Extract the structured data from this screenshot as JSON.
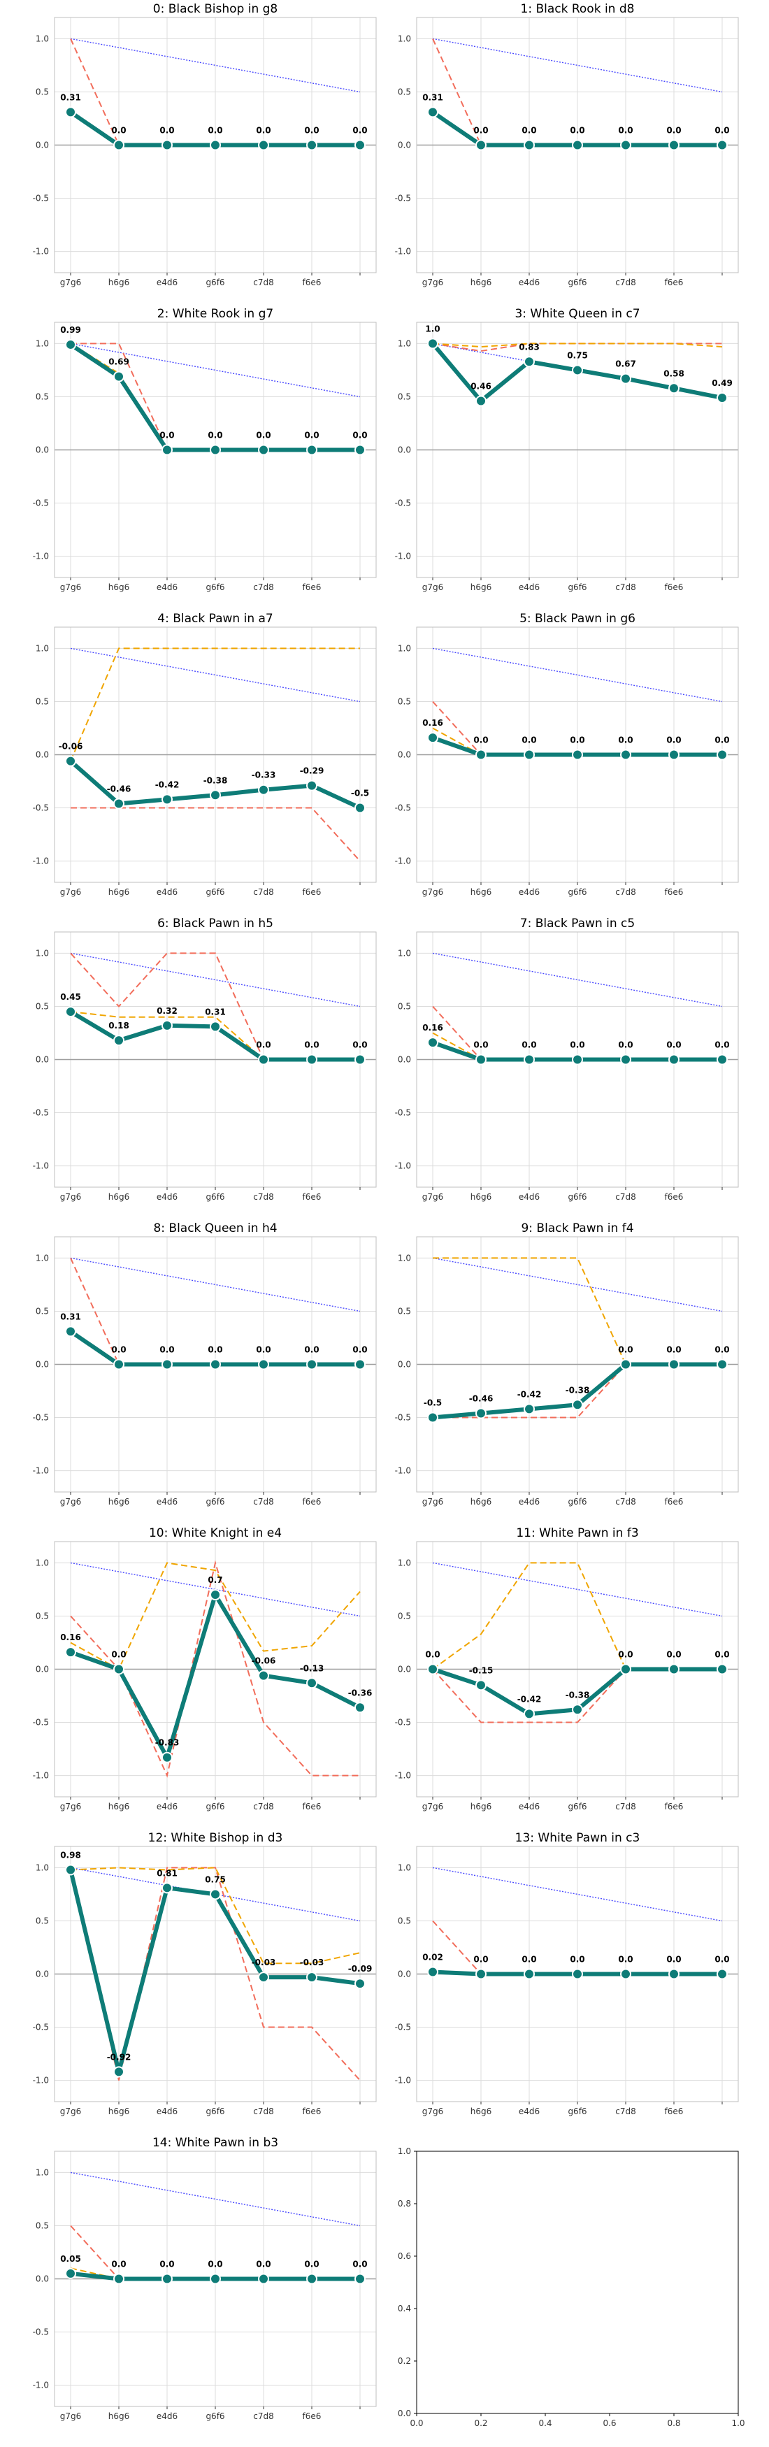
{
  "x_labels": [
    "g7g6",
    "h6g6",
    "e4d6",
    "g6f6",
    "c7d8",
    "f6e6",
    ""
  ],
  "y_ticks": [
    "1.0",
    "0.5",
    "0.0",
    "-0.5",
    "-1.0"
  ],
  "empty_axes_ticks": [
    "0.0",
    "0.2",
    "0.4",
    "0.6",
    "0.8",
    "1.0"
  ],
  "colors": {
    "main": "#0e7c77",
    "orange": "#f0a500",
    "red": "#f26d5b",
    "blue": "#4a4aff",
    "zero": "#9e9e9e"
  },
  "chart_data": [
    {
      "type": "line",
      "title": "0: Black Bishop in g8",
      "ylim": [
        -1.2,
        1.2
      ],
      "series": [
        {
          "name": "main",
          "values": [
            0.31,
            0.0,
            0.0,
            0.0,
            0.0,
            0.0,
            0.0
          ]
        },
        {
          "name": "orange",
          "values": [
            null,
            null,
            null,
            null,
            null,
            null,
            null
          ]
        },
        {
          "name": "red",
          "values": [
            1.0,
            0.0,
            0.0,
            0.0,
            0.0,
            0.0,
            0.0
          ]
        },
        {
          "name": "blue",
          "values": [
            1.0,
            0.917,
            0.833,
            0.75,
            0.667,
            0.583,
            0.5
          ]
        }
      ],
      "labels": [
        "0.31",
        "0.0",
        "0.0",
        "0.0",
        "0.0",
        "0.0",
        "0.0"
      ]
    },
    {
      "type": "line",
      "title": "1: Black Rook in d8",
      "ylim": [
        -1.2,
        1.2
      ],
      "series": [
        {
          "name": "main",
          "values": [
            0.31,
            0.0,
            0.0,
            0.0,
            0.0,
            0.0,
            0.0
          ]
        },
        {
          "name": "orange",
          "values": [
            null,
            null,
            null,
            null,
            null,
            null,
            null
          ]
        },
        {
          "name": "red",
          "values": [
            1.0,
            0.0,
            0.0,
            0.0,
            0.0,
            0.0,
            0.0
          ]
        },
        {
          "name": "blue",
          "values": [
            1.0,
            0.917,
            0.833,
            0.75,
            0.667,
            0.583,
            0.5
          ]
        }
      ],
      "labels": [
        "0.31",
        "0.0",
        "0.0",
        "0.0",
        "0.0",
        "0.0",
        "0.0"
      ]
    },
    {
      "type": "line",
      "title": "2: White Rook in g7",
      "ylim": [
        -1.2,
        1.2
      ],
      "series": [
        {
          "name": "main",
          "values": [
            0.99,
            0.69,
            0.0,
            0.0,
            0.0,
            0.0,
            0.0
          ]
        },
        {
          "name": "orange",
          "values": [
            1.0,
            0.72,
            0.0,
            0.0,
            0.0,
            0.0,
            0.0
          ]
        },
        {
          "name": "red",
          "values": [
            1.0,
            1.0,
            0.0,
            0.0,
            0.0,
            0.0,
            0.0
          ]
        },
        {
          "name": "blue",
          "values": [
            1.0,
            0.917,
            0.833,
            0.75,
            0.667,
            0.583,
            0.5
          ]
        }
      ],
      "labels": [
        "0.99",
        "0.69",
        "0.0",
        "0.0",
        "0.0",
        "0.0",
        "0.0"
      ]
    },
    {
      "type": "line",
      "title": "3: White Queen in c7",
      "ylim": [
        -1.2,
        1.2
      ],
      "series": [
        {
          "name": "main",
          "values": [
            1.0,
            0.46,
            0.83,
            0.75,
            0.67,
            0.58,
            0.49
          ]
        },
        {
          "name": "orange",
          "values": [
            1.0,
            0.97,
            1.0,
            1.0,
            1.0,
            1.0,
            0.97
          ]
        },
        {
          "name": "red",
          "values": [
            1.0,
            0.93,
            1.0,
            1.0,
            1.0,
            1.0,
            1.0
          ]
        },
        {
          "name": "blue",
          "values": [
            1.0,
            0.917,
            0.833,
            0.75,
            0.667,
            0.583,
            0.5
          ]
        }
      ],
      "labels": [
        "1.0",
        "0.46",
        "0.83",
        "0.75",
        "0.67",
        "0.58",
        "0.49"
      ]
    },
    {
      "type": "line",
      "title": "4: Black Pawn in a7",
      "ylim": [
        -1.2,
        1.2
      ],
      "series": [
        {
          "name": "main",
          "values": [
            -0.06,
            -0.46,
            -0.42,
            -0.38,
            -0.33,
            -0.29,
            -0.5
          ]
        },
        {
          "name": "orange",
          "values": [
            -0.06,
            1.0,
            1.0,
            1.0,
            1.0,
            1.0,
            1.0
          ]
        },
        {
          "name": "red",
          "values": [
            -0.5,
            -0.5,
            -0.5,
            -0.5,
            -0.5,
            -0.5,
            -1.0
          ]
        },
        {
          "name": "blue",
          "values": [
            1.0,
            0.917,
            0.833,
            0.75,
            0.667,
            0.583,
            0.5
          ]
        }
      ],
      "labels": [
        "-0.06",
        "-0.46",
        "-0.42",
        "-0.38",
        "-0.33",
        "-0.29",
        "-0.5"
      ]
    },
    {
      "type": "line",
      "title": "5: Black Pawn in g6",
      "ylim": [
        -1.2,
        1.2
      ],
      "series": [
        {
          "name": "main",
          "values": [
            0.16,
            0.0,
            0.0,
            0.0,
            0.0,
            0.0,
            0.0
          ]
        },
        {
          "name": "orange",
          "values": [
            0.25,
            0.0,
            0.0,
            0.0,
            0.0,
            0.0,
            0.0
          ]
        },
        {
          "name": "red",
          "values": [
            0.5,
            0.0,
            0.0,
            0.0,
            0.0,
            0.0,
            0.0
          ]
        },
        {
          "name": "blue",
          "values": [
            1.0,
            0.917,
            0.833,
            0.75,
            0.667,
            0.583,
            0.5
          ]
        }
      ],
      "labels": [
        "0.16",
        "0.0",
        "0.0",
        "0.0",
        "0.0",
        "0.0",
        "0.0"
      ]
    },
    {
      "type": "line",
      "title": "6: Black Pawn in h5",
      "ylim": [
        -1.2,
        1.2
      ],
      "series": [
        {
          "name": "main",
          "values": [
            0.45,
            0.18,
            0.32,
            0.31,
            0.0,
            0.0,
            0.0
          ]
        },
        {
          "name": "orange",
          "values": [
            0.45,
            0.4,
            0.4,
            0.4,
            0.0,
            0.0,
            0.0
          ]
        },
        {
          "name": "red",
          "values": [
            1.0,
            0.5,
            1.0,
            1.0,
            0.0,
            0.0,
            0.0
          ]
        },
        {
          "name": "blue",
          "values": [
            1.0,
            0.917,
            0.833,
            0.75,
            0.667,
            0.583,
            0.5
          ]
        }
      ],
      "labels": [
        "0.45",
        "0.18",
        "0.32",
        "0.31",
        "0.0",
        "0.0",
        "0.0"
      ]
    },
    {
      "type": "line",
      "title": "7: Black Pawn in c5",
      "ylim": [
        -1.2,
        1.2
      ],
      "series": [
        {
          "name": "main",
          "values": [
            0.16,
            0.0,
            0.0,
            0.0,
            0.0,
            0.0,
            0.0
          ]
        },
        {
          "name": "orange",
          "values": [
            0.25,
            0.0,
            0.0,
            0.0,
            0.0,
            0.0,
            0.0
          ]
        },
        {
          "name": "red",
          "values": [
            0.5,
            0.0,
            0.0,
            0.0,
            0.0,
            0.0,
            0.0
          ]
        },
        {
          "name": "blue",
          "values": [
            1.0,
            0.917,
            0.833,
            0.75,
            0.667,
            0.583,
            0.5
          ]
        }
      ],
      "labels": [
        "0.16",
        "0.0",
        "0.0",
        "0.0",
        "0.0",
        "0.0",
        "0.0"
      ]
    },
    {
      "type": "line",
      "title": "8: Black Queen in h4",
      "ylim": [
        -1.2,
        1.2
      ],
      "series": [
        {
          "name": "main",
          "values": [
            0.31,
            0.0,
            0.0,
            0.0,
            0.0,
            0.0,
            0.0
          ]
        },
        {
          "name": "orange",
          "values": [
            null,
            null,
            null,
            null,
            null,
            null,
            null
          ]
        },
        {
          "name": "red",
          "values": [
            1.0,
            0.0,
            0.0,
            0.0,
            0.0,
            0.0,
            0.0
          ]
        },
        {
          "name": "blue",
          "values": [
            1.0,
            0.917,
            0.833,
            0.75,
            0.667,
            0.583,
            0.5
          ]
        }
      ],
      "labels": [
        "0.31",
        "0.0",
        "0.0",
        "0.0",
        "0.0",
        "0.0",
        "0.0"
      ]
    },
    {
      "type": "line",
      "title": "9: Black Pawn in f4",
      "ylim": [
        -1.2,
        1.2
      ],
      "series": [
        {
          "name": "main",
          "values": [
            -0.5,
            -0.46,
            -0.42,
            -0.38,
            0.0,
            0.0,
            0.0
          ]
        },
        {
          "name": "orange",
          "values": [
            1.0,
            1.0,
            1.0,
            1.0,
            0.0,
            0.0,
            0.0
          ]
        },
        {
          "name": "red",
          "values": [
            -0.5,
            -0.5,
            -0.5,
            -0.5,
            0.0,
            0.0,
            0.0
          ]
        },
        {
          "name": "blue",
          "values": [
            1.0,
            0.917,
            0.833,
            0.75,
            0.667,
            0.583,
            0.5
          ]
        }
      ],
      "labels": [
        "-0.5",
        "-0.46",
        "-0.42",
        "-0.38",
        "0.0",
        "0.0",
        "0.0"
      ]
    },
    {
      "type": "line",
      "title": "10: White Knight in e4",
      "ylim": [
        -1.2,
        1.2
      ],
      "series": [
        {
          "name": "main",
          "values": [
            0.16,
            0.0,
            -0.83,
            0.7,
            -0.06,
            -0.13,
            -0.36
          ]
        },
        {
          "name": "orange",
          "values": [
            0.25,
            0.0,
            1.0,
            0.93,
            0.17,
            0.22,
            0.73
          ]
        },
        {
          "name": "red",
          "values": [
            0.5,
            0.0,
            -1.0,
            1.0,
            -0.5,
            -1.0,
            -1.0
          ]
        },
        {
          "name": "blue",
          "values": [
            1.0,
            0.917,
            0.833,
            0.75,
            0.667,
            0.583,
            0.5
          ]
        }
      ],
      "labels": [
        "0.16",
        "0.0",
        "-0.83",
        "0.7",
        "-0.06",
        "-0.13",
        "-0.36"
      ]
    },
    {
      "type": "line",
      "title": "11: White Pawn in f3",
      "ylim": [
        -1.2,
        1.2
      ],
      "series": [
        {
          "name": "main",
          "values": [
            0.0,
            -0.15,
            -0.42,
            -0.38,
            0.0,
            0.0,
            0.0
          ]
        },
        {
          "name": "orange",
          "values": [
            0.0,
            0.33,
            1.0,
            1.0,
            0.0,
            0.0,
            0.0
          ]
        },
        {
          "name": "red",
          "values": [
            0.0,
            -0.5,
            -0.5,
            -0.5,
            0.0,
            0.0,
            0.0
          ]
        },
        {
          "name": "blue",
          "values": [
            1.0,
            0.917,
            0.833,
            0.75,
            0.667,
            0.583,
            0.5
          ]
        }
      ],
      "labels": [
        "0.0",
        "-0.15",
        "-0.42",
        "-0.38",
        "0.0",
        "0.0",
        "0.0"
      ]
    },
    {
      "type": "line",
      "title": "12: White Bishop in d3",
      "ylim": [
        -1.2,
        1.2
      ],
      "series": [
        {
          "name": "main",
          "values": [
            0.98,
            -0.92,
            0.81,
            0.75,
            -0.03,
            -0.03,
            -0.09
          ]
        },
        {
          "name": "orange",
          "values": [
            0.98,
            1.0,
            0.98,
            1.0,
            0.1,
            0.1,
            0.2
          ]
        },
        {
          "name": "red",
          "values": [
            1.0,
            -1.0,
            1.0,
            1.0,
            -0.5,
            -0.5,
            -1.0
          ]
        },
        {
          "name": "blue",
          "values": [
            1.0,
            0.917,
            0.833,
            0.75,
            0.667,
            0.583,
            0.5
          ]
        }
      ],
      "labels": [
        "0.98",
        "-0.92",
        "0.81",
        "0.75",
        "-0.03",
        "-0.03",
        "-0.09"
      ]
    },
    {
      "type": "line",
      "title": "13: White Pawn in c3",
      "ylim": [
        -1.2,
        1.2
      ],
      "series": [
        {
          "name": "main",
          "values": [
            0.02,
            0.0,
            0.0,
            0.0,
            0.0,
            0.0,
            0.0
          ]
        },
        {
          "name": "orange",
          "values": [
            null,
            null,
            null,
            null,
            null,
            null,
            null
          ]
        },
        {
          "name": "red",
          "values": [
            0.5,
            0.0,
            0.0,
            0.0,
            0.0,
            0.0,
            0.0
          ]
        },
        {
          "name": "blue",
          "values": [
            1.0,
            0.917,
            0.833,
            0.75,
            0.667,
            0.583,
            0.5
          ]
        }
      ],
      "labels": [
        "0.02",
        "0.0",
        "0.0",
        "0.0",
        "0.0",
        "0.0",
        "0.0"
      ]
    },
    {
      "type": "line",
      "title": "14: White Pawn in b3",
      "ylim": [
        -1.2,
        1.2
      ],
      "series": [
        {
          "name": "main",
          "values": [
            0.05,
            0.0,
            0.0,
            0.0,
            0.0,
            0.0,
            0.0
          ]
        },
        {
          "name": "orange",
          "values": [
            0.1,
            0.0,
            0.0,
            0.0,
            0.0,
            0.0,
            0.0
          ]
        },
        {
          "name": "red",
          "values": [
            0.5,
            0.0,
            0.0,
            0.0,
            0.0,
            0.0,
            0.0
          ]
        },
        {
          "name": "blue",
          "values": [
            1.0,
            0.917,
            0.833,
            0.75,
            0.667,
            0.583,
            0.5
          ]
        }
      ],
      "labels": [
        "0.05",
        "0.0",
        "0.0",
        "0.0",
        "0.0",
        "0.0",
        "0.0"
      ]
    }
  ]
}
